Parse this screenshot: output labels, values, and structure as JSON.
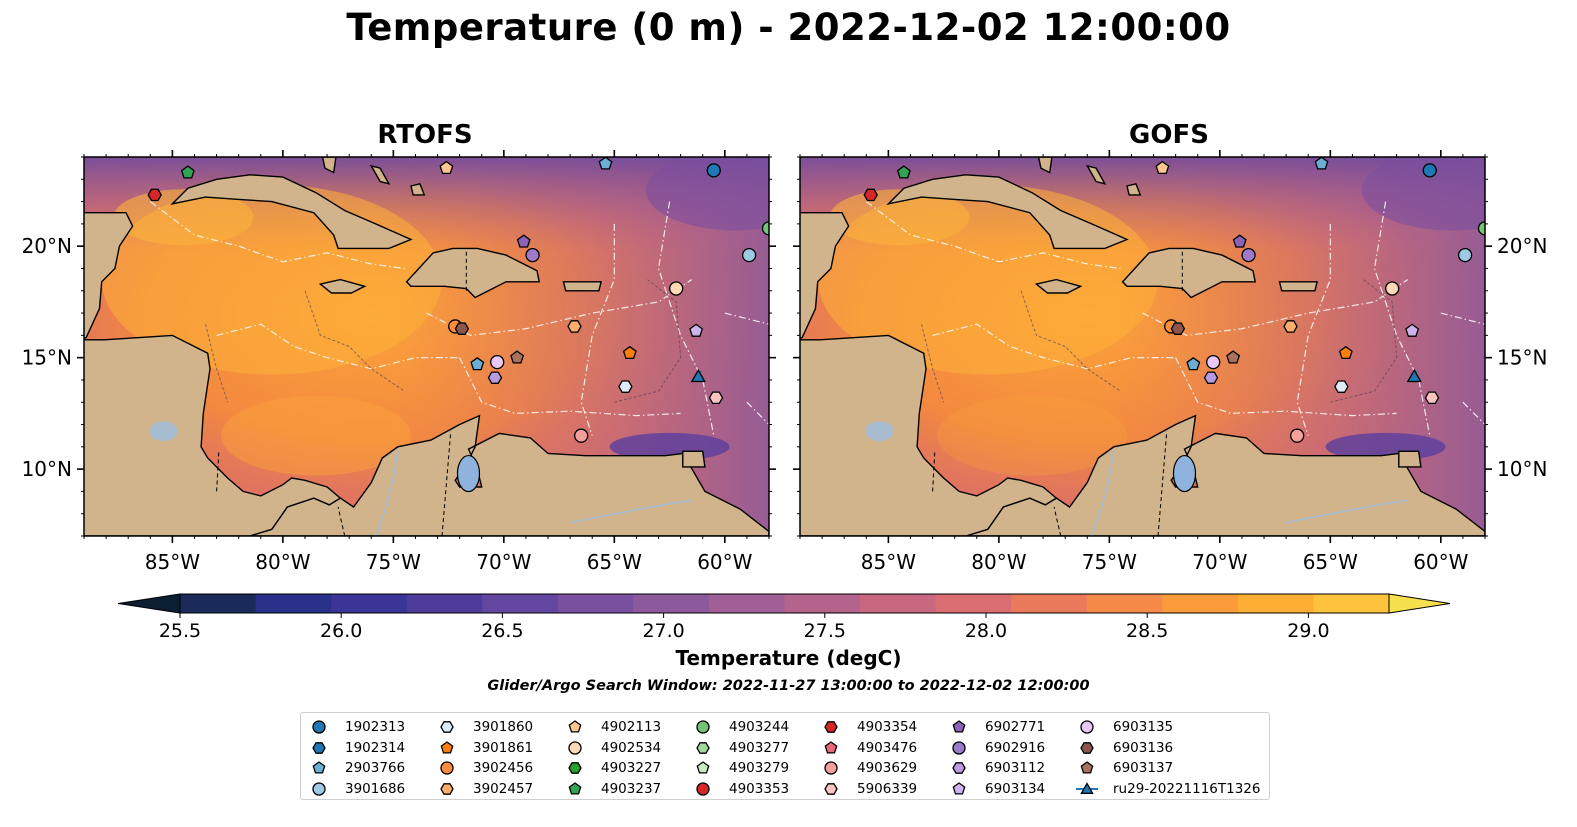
{
  "title": "Temperature (0 m) - 2022-12-02 12:00:00",
  "panels": [
    {
      "name": "RTOFS"
    },
    {
      "name": "GOFS"
    }
  ],
  "map": {
    "lon_ticks": [
      "85°W",
      "80°W",
      "75°W",
      "70°W",
      "65°W",
      "60°W"
    ],
    "lat_ticks": [
      "20°N",
      "15°N",
      "10°N"
    ],
    "extent": {
      "lon": [
        -89,
        -58
      ],
      "lat": [
        7,
        24
      ]
    }
  },
  "colorbar": {
    "label": "Temperature (degC)",
    "ticks": [
      "25.5",
      "26.0",
      "26.5",
      "27.0",
      "27.5",
      "28.0",
      "28.5",
      "29.0"
    ],
    "range": [
      25.5,
      29.25
    ],
    "colors": [
      "#0b1f33",
      "#1a2a5a",
      "#28308a",
      "#3a3597",
      "#4e3c9c",
      "#63469f",
      "#78509f",
      "#8c5a9c",
      "#a05f95",
      "#b4638c",
      "#c86880",
      "#da6e72",
      "#ea7a5c",
      "#f68a48",
      "#fb9b3a",
      "#fdae33",
      "#fdc33c",
      "#f7e04e"
    ]
  },
  "search_window": "Glider/Argo Search Window: 2022-11-27 13:00:00 to 2022-12-02 12:00:00",
  "legend": [
    {
      "label": "1902313",
      "color": "#1f77b4",
      "shape": "circle"
    },
    {
      "label": "1902314",
      "color": "#1f77b4",
      "shape": "hexagon"
    },
    {
      "label": "2903766",
      "color": "#6baed6",
      "shape": "pentagon"
    },
    {
      "label": "3901686",
      "color": "#9ecae1",
      "shape": "circle"
    },
    {
      "label": "3901860",
      "color": "#deebf7",
      "shape": "hexagon"
    },
    {
      "label": "3901861",
      "color": "#ff7f0e",
      "shape": "pentagon"
    },
    {
      "label": "3902456",
      "color": "#fd8d3c",
      "shape": "circle"
    },
    {
      "label": "3902457",
      "color": "#fdae6b",
      "shape": "hexagon"
    },
    {
      "label": "4902113",
      "color": "#fdc58f",
      "shape": "pentagon"
    },
    {
      "label": "4902534",
      "color": "#fdd9b5",
      "shape": "circle"
    },
    {
      "label": "4903227",
      "color": "#2ca02c",
      "shape": "hexagon"
    },
    {
      "label": "4903237",
      "color": "#31a354",
      "shape": "pentagon"
    },
    {
      "label": "4903244",
      "color": "#74c476",
      "shape": "circle"
    },
    {
      "label": "4903277",
      "color": "#a1d99b",
      "shape": "hexagon"
    },
    {
      "label": "4903279",
      "color": "#c7e9c0",
      "shape": "pentagon"
    },
    {
      "label": "4903353",
      "color": "#d62728",
      "shape": "circle"
    },
    {
      "label": "4903354",
      "color": "#d62728",
      "shape": "hexagon"
    },
    {
      "label": "4903476",
      "color": "#e7697a",
      "shape": "pentagon"
    },
    {
      "label": "4903629",
      "color": "#f4a09a",
      "shape": "circle"
    },
    {
      "label": "5906339",
      "color": "#fcc5c0",
      "shape": "hexagon"
    },
    {
      "label": "6902771",
      "color": "#8c62b8",
      "shape": "pentagon"
    },
    {
      "label": "6902916",
      "color": "#9e7bc8",
      "shape": "circle"
    },
    {
      "label": "6903112",
      "color": "#b89be0",
      "shape": "hexagon"
    },
    {
      "label": "6903134",
      "color": "#cdb4ec",
      "shape": "pentagon"
    },
    {
      "label": "6903135",
      "color": "#e8c8f4",
      "shape": "circle"
    },
    {
      "label": "6903136",
      "color": "#8c564b",
      "shape": "hexagon"
    },
    {
      "label": "6903137",
      "color": "#a9715e",
      "shape": "pentagon"
    },
    {
      "label": "ru29-20221116T1326",
      "color": "#1f77b4",
      "shape": "triangle-line"
    }
  ],
  "glider": {
    "label": "ru29-20221116T1326",
    "track": [
      [
        -61.1,
        14.4
      ],
      [
        -61.2,
        14.1
      ]
    ]
  },
  "argo_floats": [
    {
      "id": "4903354",
      "lon": -85.8,
      "lat": 22.3
    },
    {
      "id": "4903237",
      "lon": -84.3,
      "lat": 23.3
    },
    {
      "id": "4902113",
      "lon": -72.6,
      "lat": 23.5
    },
    {
      "id": "2903766",
      "lon": -65.4,
      "lat": 23.7
    },
    {
      "id": "1902313",
      "lon": -60.5,
      "lat": 23.4
    },
    {
      "id": "4903244",
      "lon": -58.0,
      "lat": 20.8
    },
    {
      "id": "3901686",
      "lon": -58.9,
      "lat": 19.6
    },
    {
      "id": "6902771",
      "lon": -69.1,
      "lat": 20.2
    },
    {
      "id": "6902916",
      "lon": -68.7,
      "lat": 19.6
    },
    {
      "id": "4902534",
      "lon": -62.2,
      "lat": 18.1
    },
    {
      "id": "3902456",
      "lon": -72.2,
      "lat": 16.4
    },
    {
      "id": "6903136",
      "lon": -71.9,
      "lat": 16.3
    },
    {
      "id": "3902457",
      "lon": -66.8,
      "lat": 16.4
    },
    {
      "id": "6903134",
      "lon": -61.3,
      "lat": 16.2
    },
    {
      "id": "3901861",
      "lon": -64.3,
      "lat": 15.2
    },
    {
      "id": "6903137",
      "lon": -69.4,
      "lat": 15.0
    },
    {
      "id": "6903135",
      "lon": -70.3,
      "lat": 14.8
    },
    {
      "id": "2903766",
      "lon": -71.2,
      "lat": 14.7
    },
    {
      "id": "6903112",
      "lon": -70.4,
      "lat": 14.1
    },
    {
      "id": "3901860",
      "lon": -64.5,
      "lat": 13.7
    },
    {
      "id": "5906339",
      "lon": -60.4,
      "lat": 13.2
    },
    {
      "id": "4903629",
      "lon": -66.5,
      "lat": 11.5
    }
  ]
}
